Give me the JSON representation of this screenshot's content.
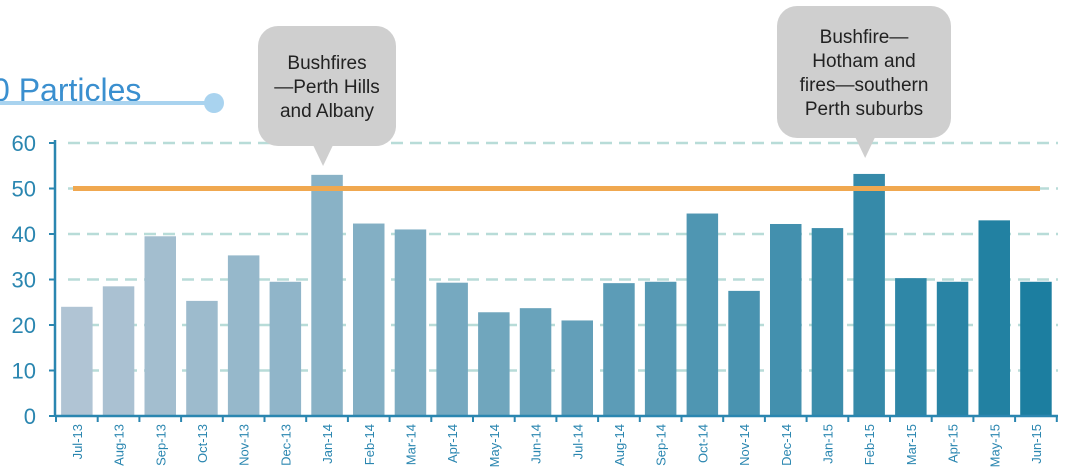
{
  "page_title": "0 Particles",
  "colors": {
    "title": "#3a8fcf",
    "title_rule": "#a9d3ef",
    "axis": "#2a86b0",
    "grid": "#b8dcd8",
    "threshold": "#f0a850",
    "callout_bg": "#cfcfcf",
    "bar_start": "#b0c4d4",
    "bar_end": "#1c7ea0"
  },
  "chart_data": {
    "type": "bar",
    "title": "0 Particles",
    "xlabel": "",
    "ylabel": "",
    "ylim": [
      0,
      60
    ],
    "yticks": [
      0,
      10,
      20,
      30,
      40,
      50,
      60
    ],
    "grid": "horizontal dashed",
    "categories": [
      "Jul-13",
      "Aug-13",
      "Sep-13",
      "Oct-13",
      "Nov-13",
      "Dec-13",
      "Jan-14",
      "Feb-14",
      "Mar-14",
      "Apr-14",
      "May-14",
      "Jun-14",
      "Jul-14",
      "Aug-14",
      "Sep-14",
      "Oct-14",
      "Nov-14",
      "Dec-14",
      "Jan-15",
      "Feb-15",
      "Mar-15",
      "Apr-15",
      "May-15",
      "Jun-15"
    ],
    "values": [
      24,
      28.5,
      39.5,
      25.3,
      35.3,
      29.5,
      53,
      42.3,
      41,
      29.3,
      22.8,
      23.7,
      21,
      29.2,
      29.5,
      44.5,
      27.5,
      42.2,
      41.3,
      53.2,
      30.3,
      29.5,
      43,
      29.5
    ],
    "threshold": 50,
    "annotations": [
      {
        "category": "Jan-14",
        "lines": [
          "Bushfires",
          "—Perth Hills",
          "and Albany"
        ]
      },
      {
        "category": "Feb-15",
        "lines": [
          "Bushfire—",
          "Hotham and",
          "fires—southern",
          "Perth suburbs"
        ]
      }
    ]
  }
}
